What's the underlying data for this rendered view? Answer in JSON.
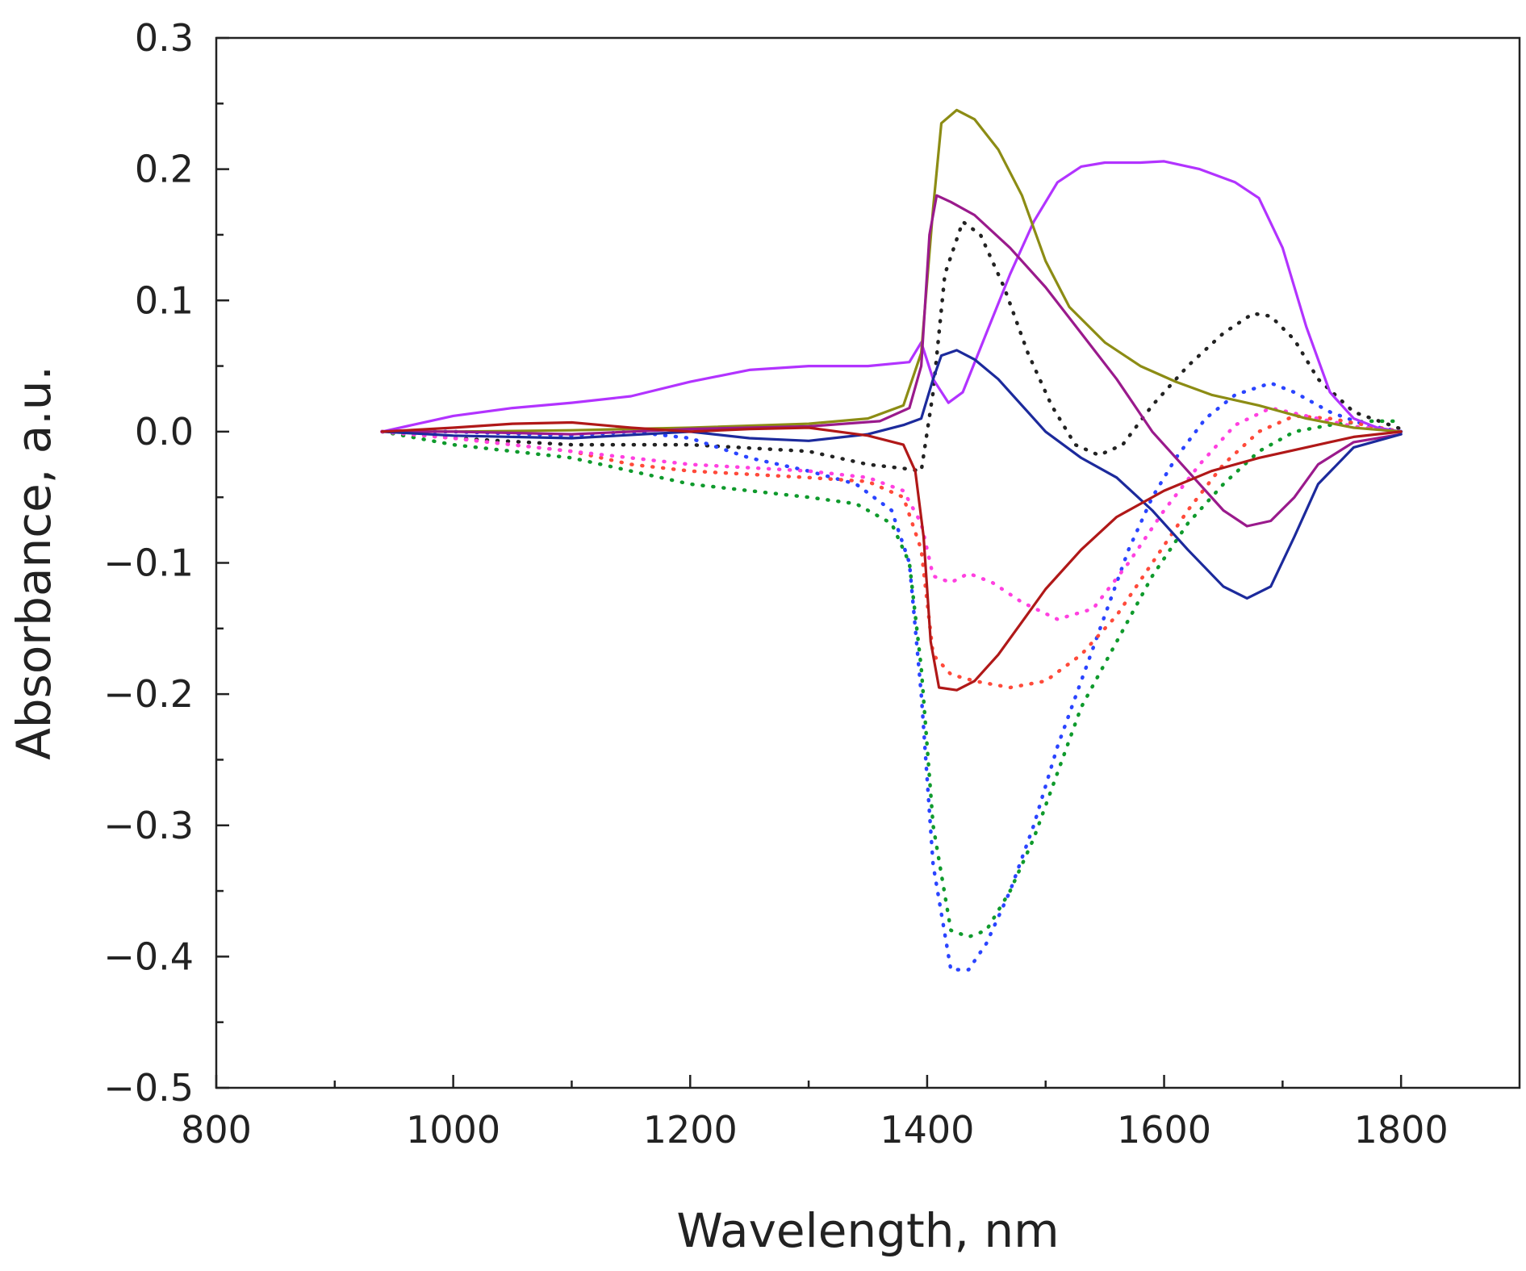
{
  "chart_data": {
    "type": "line",
    "title": "",
    "xlabel": "Wavelength, nm",
    "ylabel": "Absorbance, a.u.",
    "xlim": [
      800,
      1900
    ],
    "ylim": [
      -0.5,
      0.3
    ],
    "x_major_ticks": [
      800,
      1000,
      1200,
      1400,
      1600,
      1800
    ],
    "x_tick_labels": [
      "800",
      "1000",
      "1200",
      "1400",
      "1600",
      "1800"
    ],
    "x_minor_ticks": [
      900,
      1100,
      1300,
      1500,
      1700
    ],
    "y_major_ticks": [
      -0.5,
      -0.4,
      -0.3,
      -0.2,
      -0.1,
      0.0,
      0.1,
      0.2,
      0.3
    ],
    "y_tick_labels": [
      "−0.5",
      "−0.4",
      "−0.3",
      "−0.2",
      "−0.1",
      "0.0",
      "0.1",
      "0.2",
      "0.3"
    ],
    "y_minor_ticks": [
      -0.45,
      -0.35,
      -0.25,
      -0.15,
      -0.05,
      0.05,
      0.15,
      0.25
    ],
    "grid": false,
    "legend": "none",
    "series": [
      {
        "name": "violet-solid",
        "color": "#b233ff",
        "style": "solid",
        "points": [
          [
            940,
            0.0
          ],
          [
            980,
            0.008
          ],
          [
            1000,
            0.012
          ],
          [
            1050,
            0.018
          ],
          [
            1100,
            0.022
          ],
          [
            1150,
            0.027
          ],
          [
            1200,
            0.038
          ],
          [
            1250,
            0.047
          ],
          [
            1300,
            0.05
          ],
          [
            1350,
            0.05
          ],
          [
            1385,
            0.053
          ],
          [
            1395,
            0.068
          ],
          [
            1405,
            0.04
          ],
          [
            1418,
            0.022
          ],
          [
            1430,
            0.03
          ],
          [
            1450,
            0.075
          ],
          [
            1470,
            0.12
          ],
          [
            1490,
            0.16
          ],
          [
            1510,
            0.19
          ],
          [
            1530,
            0.202
          ],
          [
            1550,
            0.205
          ],
          [
            1580,
            0.205
          ],
          [
            1600,
            0.206
          ],
          [
            1630,
            0.2
          ],
          [
            1660,
            0.19
          ],
          [
            1680,
            0.178
          ],
          [
            1700,
            0.14
          ],
          [
            1720,
            0.08
          ],
          [
            1740,
            0.03
          ],
          [
            1760,
            0.01
          ],
          [
            1780,
            0.003
          ],
          [
            1800,
            0.0
          ]
        ]
      },
      {
        "name": "olive-solid",
        "color": "#8c8c14",
        "style": "solid",
        "points": [
          [
            940,
            0.0
          ],
          [
            1000,
            0.0
          ],
          [
            1100,
            0.001
          ],
          [
            1200,
            0.003
          ],
          [
            1300,
            0.006
          ],
          [
            1350,
            0.01
          ],
          [
            1380,
            0.02
          ],
          [
            1395,
            0.06
          ],
          [
            1405,
            0.17
          ],
          [
            1412,
            0.235
          ],
          [
            1425,
            0.245
          ],
          [
            1440,
            0.238
          ],
          [
            1460,
            0.215
          ],
          [
            1480,
            0.18
          ],
          [
            1500,
            0.13
          ],
          [
            1520,
            0.095
          ],
          [
            1550,
            0.068
          ],
          [
            1580,
            0.05
          ],
          [
            1610,
            0.038
          ],
          [
            1640,
            0.028
          ],
          [
            1680,
            0.02
          ],
          [
            1720,
            0.01
          ],
          [
            1760,
            0.003
          ],
          [
            1800,
            0.0
          ]
        ]
      },
      {
        "name": "purple-solid",
        "color": "#9a1a8c",
        "style": "solid",
        "points": [
          [
            940,
            0.0
          ],
          [
            1000,
            0.0
          ],
          [
            1100,
            -0.002
          ],
          [
            1200,
            0.002
          ],
          [
            1300,
            0.004
          ],
          [
            1360,
            0.008
          ],
          [
            1385,
            0.018
          ],
          [
            1395,
            0.05
          ],
          [
            1402,
            0.15
          ],
          [
            1408,
            0.18
          ],
          [
            1420,
            0.175
          ],
          [
            1440,
            0.165
          ],
          [
            1470,
            0.14
          ],
          [
            1500,
            0.11
          ],
          [
            1530,
            0.075
          ],
          [
            1560,
            0.04
          ],
          [
            1590,
            0.0
          ],
          [
            1620,
            -0.03
          ],
          [
            1650,
            -0.06
          ],
          [
            1670,
            -0.072
          ],
          [
            1690,
            -0.068
          ],
          [
            1710,
            -0.05
          ],
          [
            1730,
            -0.025
          ],
          [
            1760,
            -0.008
          ],
          [
            1800,
            -0.002
          ]
        ]
      },
      {
        "name": "navy-solid",
        "color": "#1c2a9c",
        "style": "solid",
        "points": [
          [
            940,
            0.0
          ],
          [
            1000,
            -0.003
          ],
          [
            1100,
            -0.005
          ],
          [
            1200,
            0.0
          ],
          [
            1250,
            -0.005
          ],
          [
            1300,
            -0.007
          ],
          [
            1350,
            -0.002
          ],
          [
            1380,
            0.005
          ],
          [
            1395,
            0.01
          ],
          [
            1405,
            0.04
          ],
          [
            1412,
            0.058
          ],
          [
            1425,
            0.062
          ],
          [
            1440,
            0.055
          ],
          [
            1460,
            0.04
          ],
          [
            1480,
            0.02
          ],
          [
            1500,
            0.0
          ],
          [
            1530,
            -0.02
          ],
          [
            1560,
            -0.035
          ],
          [
            1590,
            -0.06
          ],
          [
            1620,
            -0.09
          ],
          [
            1650,
            -0.118
          ],
          [
            1670,
            -0.127
          ],
          [
            1690,
            -0.118
          ],
          [
            1710,
            -0.08
          ],
          [
            1730,
            -0.04
          ],
          [
            1760,
            -0.012
          ],
          [
            1800,
            -0.002
          ]
        ]
      },
      {
        "name": "darkred-solid",
        "color": "#b01818",
        "style": "solid",
        "points": [
          [
            940,
            0.0
          ],
          [
            1000,
            0.003
          ],
          [
            1050,
            0.006
          ],
          [
            1100,
            0.007
          ],
          [
            1150,
            0.003
          ],
          [
            1200,
            0.0
          ],
          [
            1250,
            0.002
          ],
          [
            1300,
            0.003
          ],
          [
            1350,
            -0.003
          ],
          [
            1380,
            -0.01
          ],
          [
            1390,
            -0.03
          ],
          [
            1397,
            -0.08
          ],
          [
            1403,
            -0.16
          ],
          [
            1410,
            -0.195
          ],
          [
            1425,
            -0.197
          ],
          [
            1440,
            -0.19
          ],
          [
            1460,
            -0.17
          ],
          [
            1480,
            -0.145
          ],
          [
            1500,
            -0.12
          ],
          [
            1530,
            -0.09
          ],
          [
            1560,
            -0.065
          ],
          [
            1600,
            -0.045
          ],
          [
            1640,
            -0.03
          ],
          [
            1680,
            -0.02
          ],
          [
            1720,
            -0.012
          ],
          [
            1760,
            -0.004
          ],
          [
            1800,
            0.0
          ]
        ]
      },
      {
        "name": "black-dotted",
        "color": "#222222",
        "style": "dotted",
        "points": [
          [
            940,
            0.0
          ],
          [
            1000,
            -0.005
          ],
          [
            1100,
            -0.01
          ],
          [
            1200,
            -0.01
          ],
          [
            1300,
            -0.015
          ],
          [
            1350,
            -0.025
          ],
          [
            1380,
            -0.028
          ],
          [
            1395,
            -0.03
          ],
          [
            1405,
            0.03
          ],
          [
            1415,
            0.12
          ],
          [
            1430,
            0.16
          ],
          [
            1445,
            0.15
          ],
          [
            1465,
            0.11
          ],
          [
            1485,
            0.06
          ],
          [
            1505,
            0.02
          ],
          [
            1525,
            -0.01
          ],
          [
            1545,
            -0.018
          ],
          [
            1565,
            -0.01
          ],
          [
            1590,
            0.02
          ],
          [
            1620,
            0.05
          ],
          [
            1650,
            0.075
          ],
          [
            1675,
            0.09
          ],
          [
            1690,
            0.088
          ],
          [
            1710,
            0.07
          ],
          [
            1730,
            0.04
          ],
          [
            1760,
            0.015
          ],
          [
            1800,
            0.002
          ]
        ]
      },
      {
        "name": "blue-dotted",
        "color": "#2a44ff",
        "style": "dotted",
        "points": [
          [
            940,
            0.0
          ],
          [
            1000,
            0.0
          ],
          [
            1100,
            -0.003
          ],
          [
            1150,
            0.0
          ],
          [
            1200,
            -0.005
          ],
          [
            1250,
            -0.02
          ],
          [
            1300,
            -0.03
          ],
          [
            1340,
            -0.04
          ],
          [
            1370,
            -0.06
          ],
          [
            1385,
            -0.1
          ],
          [
            1395,
            -0.2
          ],
          [
            1405,
            -0.33
          ],
          [
            1420,
            -0.41
          ],
          [
            1435,
            -0.41
          ],
          [
            1450,
            -0.39
          ],
          [
            1470,
            -0.35
          ],
          [
            1490,
            -0.3
          ],
          [
            1510,
            -0.24
          ],
          [
            1530,
            -0.19
          ],
          [
            1550,
            -0.14
          ],
          [
            1570,
            -0.09
          ],
          [
            1590,
            -0.05
          ],
          [
            1610,
            -0.02
          ],
          [
            1635,
            0.01
          ],
          [
            1660,
            0.028
          ],
          [
            1690,
            0.037
          ],
          [
            1710,
            0.03
          ],
          [
            1740,
            0.015
          ],
          [
            1770,
            0.005
          ],
          [
            1800,
            0.0
          ]
        ]
      },
      {
        "name": "green-dotted",
        "color": "#0f9a2c",
        "style": "dotted",
        "points": [
          [
            940,
            0.0
          ],
          [
            1000,
            -0.01
          ],
          [
            1100,
            -0.02
          ],
          [
            1150,
            -0.03
          ],
          [
            1200,
            -0.04
          ],
          [
            1250,
            -0.045
          ],
          [
            1300,
            -0.05
          ],
          [
            1340,
            -0.055
          ],
          [
            1370,
            -0.07
          ],
          [
            1385,
            -0.1
          ],
          [
            1395,
            -0.18
          ],
          [
            1405,
            -0.3
          ],
          [
            1420,
            -0.38
          ],
          [
            1435,
            -0.385
          ],
          [
            1450,
            -0.38
          ],
          [
            1470,
            -0.35
          ],
          [
            1490,
            -0.31
          ],
          [
            1510,
            -0.26
          ],
          [
            1530,
            -0.21
          ],
          [
            1560,
            -0.16
          ],
          [
            1590,
            -0.11
          ],
          [
            1620,
            -0.07
          ],
          [
            1650,
            -0.04
          ],
          [
            1680,
            -0.015
          ],
          [
            1710,
            0.0
          ],
          [
            1740,
            0.005
          ],
          [
            1770,
            0.008
          ],
          [
            1800,
            0.008
          ]
        ]
      },
      {
        "name": "red-dotted",
        "color": "#ff4a3a",
        "style": "dotted",
        "points": [
          [
            940,
            0.0
          ],
          [
            1000,
            -0.005
          ],
          [
            1100,
            -0.015
          ],
          [
            1150,
            -0.025
          ],
          [
            1200,
            -0.03
          ],
          [
            1300,
            -0.035
          ],
          [
            1350,
            -0.038
          ],
          [
            1380,
            -0.05
          ],
          [
            1395,
            -0.09
          ],
          [
            1405,
            -0.17
          ],
          [
            1420,
            -0.185
          ],
          [
            1440,
            -0.19
          ],
          [
            1470,
            -0.195
          ],
          [
            1500,
            -0.19
          ],
          [
            1530,
            -0.17
          ],
          [
            1560,
            -0.14
          ],
          [
            1590,
            -0.1
          ],
          [
            1620,
            -0.06
          ],
          [
            1650,
            -0.025
          ],
          [
            1680,
            0.0
          ],
          [
            1710,
            0.012
          ],
          [
            1740,
            0.01
          ],
          [
            1770,
            0.005
          ],
          [
            1800,
            0.0
          ]
        ]
      },
      {
        "name": "magenta-dotted",
        "color": "#ff40e0",
        "style": "dotted",
        "points": [
          [
            940,
            0.0
          ],
          [
            1000,
            -0.005
          ],
          [
            1100,
            -0.015
          ],
          [
            1150,
            -0.02
          ],
          [
            1200,
            -0.025
          ],
          [
            1300,
            -0.03
          ],
          [
            1350,
            -0.035
          ],
          [
            1380,
            -0.045
          ],
          [
            1395,
            -0.07
          ],
          [
            1405,
            -0.11
          ],
          [
            1420,
            -0.115
          ],
          [
            1435,
            -0.108
          ],
          [
            1455,
            -0.115
          ],
          [
            1480,
            -0.13
          ],
          [
            1510,
            -0.143
          ],
          [
            1540,
            -0.135
          ],
          [
            1570,
            -0.1
          ],
          [
            1600,
            -0.06
          ],
          [
            1630,
            -0.025
          ],
          [
            1660,
            0.005
          ],
          [
            1690,
            0.018
          ],
          [
            1720,
            0.012
          ],
          [
            1760,
            0.004
          ],
          [
            1800,
            0.0
          ]
        ]
      }
    ]
  }
}
